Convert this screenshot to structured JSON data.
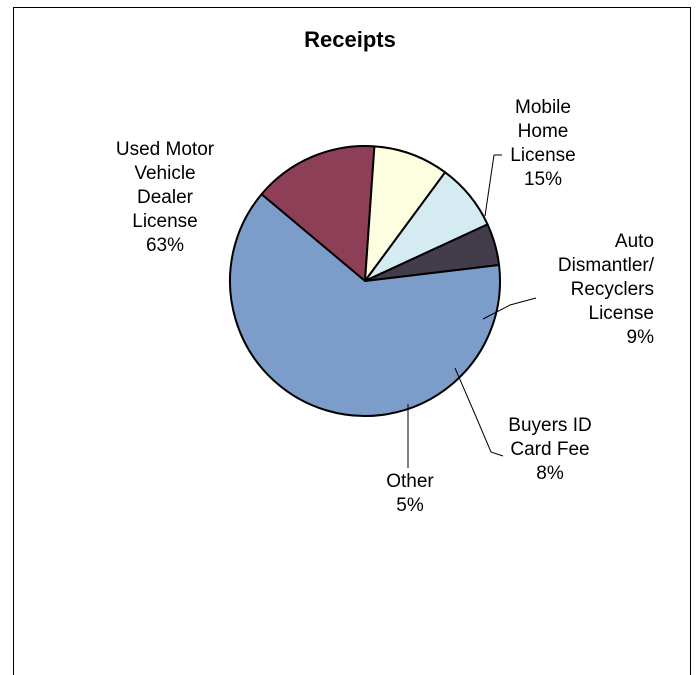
{
  "chart_data": {
    "type": "pie",
    "title": "Receipts",
    "slices": [
      {
        "label": "Mobile Home License",
        "label_lines": [
          "Mobile",
          "Home",
          "License"
        ],
        "value": 15,
        "pct_label": "15%",
        "color": "#8c3f57"
      },
      {
        "label": "Auto Dismantler/ Recyclers License",
        "label_lines": [
          "Auto",
          "Dismantler/",
          "Recyclers",
          "License"
        ],
        "value": 9,
        "pct_label": "9%",
        "color": "#fdfde0"
      },
      {
        "label": "Buyers ID Card Fee",
        "label_lines": [
          "Buyers ID",
          "Card Fee"
        ],
        "value": 8,
        "pct_label": "8%",
        "color": "#d5ebf2"
      },
      {
        "label": "Other",
        "label_lines": [
          "Other"
        ],
        "value": 5,
        "pct_label": "5%",
        "color": "#433d4b"
      },
      {
        "label": "Used Motor Vehicle Dealer License",
        "label_lines": [
          "Used Motor",
          "Vehicle",
          "Dealer",
          "License"
        ],
        "value": 63,
        "pct_label": "63%",
        "color": "#7c9cc9"
      }
    ]
  }
}
